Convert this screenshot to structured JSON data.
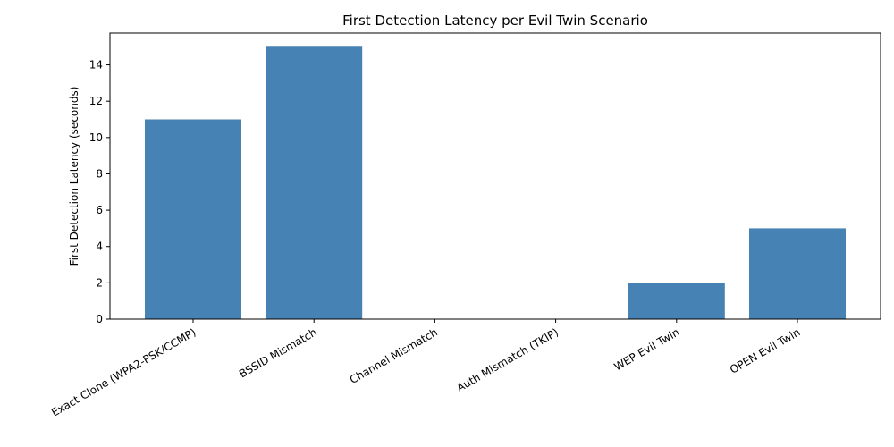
{
  "chart_data": {
    "type": "bar",
    "title": "First Detection Latency per Evil Twin Scenario",
    "xlabel": "",
    "ylabel": "First Detection Latency (seconds)",
    "categories": [
      "Exact Clone (WPA2-PSK/CCMP)",
      "BSSID Mismatch",
      "Channel Mismatch",
      "Auth Mismatch (TKIP)",
      "WEP Evil Twin",
      "OPEN Evil Twin"
    ],
    "values": [
      11,
      15,
      0,
      0,
      2,
      5
    ],
    "ylim": [
      0,
      15.75
    ],
    "yticks": [
      0,
      2,
      4,
      6,
      8,
      10,
      12,
      14
    ],
    "grid": false,
    "legend": "none",
    "bar_color": "#4682b4"
  }
}
